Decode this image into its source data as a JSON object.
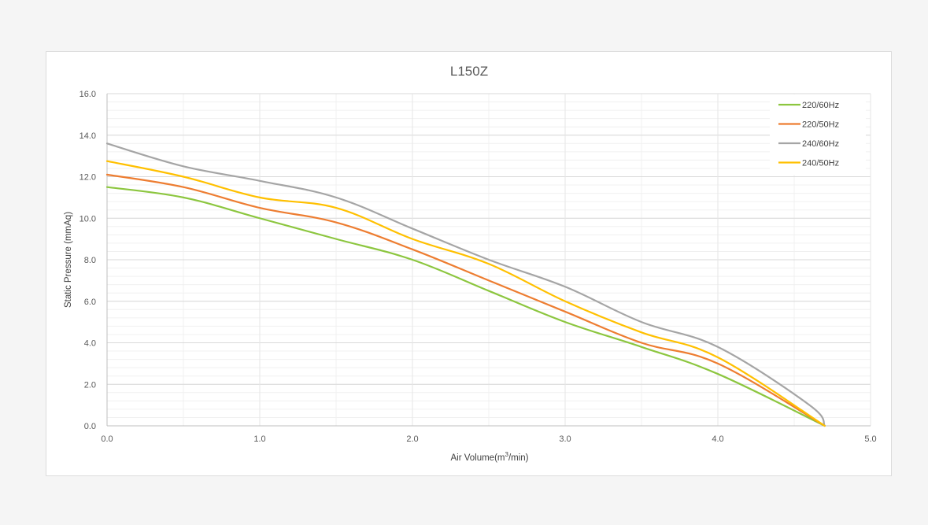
{
  "chart_data": {
    "type": "line",
    "title": "L150Z",
    "xlabel_prefix": "Air Volume(m",
    "xlabel_sup": "3",
    "xlabel_suffix": "/min)",
    "ylabel": "Static Pressure (mmAq)",
    "xlim": [
      0,
      5
    ],
    "ylim": [
      0,
      16
    ],
    "x_ticks": [
      "0.0",
      "1.0",
      "2.0",
      "3.0",
      "4.0",
      "5.0"
    ],
    "y_ticks": [
      "0.0",
      "2.0",
      "4.0",
      "6.0",
      "8.0",
      "10.0",
      "12.0",
      "14.0",
      "16.0"
    ],
    "grid": true,
    "legend_position": "top-right",
    "series": [
      {
        "name": "220/60Hz",
        "color": "#8cc63f",
        "points": [
          [
            0,
            11.5
          ],
          [
            0.5,
            11.0
          ],
          [
            1.0,
            10.0
          ],
          [
            1.5,
            9.0
          ],
          [
            2.0,
            8.0
          ],
          [
            2.5,
            6.5
          ],
          [
            3.0,
            5.0
          ],
          [
            3.5,
            3.8
          ],
          [
            4.0,
            2.5
          ],
          [
            4.7,
            0.0
          ]
        ]
      },
      {
        "name": "220/50Hz",
        "color": "#ed7d31",
        "points": [
          [
            0,
            12.1
          ],
          [
            0.5,
            11.5
          ],
          [
            1.0,
            10.5
          ],
          [
            1.5,
            9.8
          ],
          [
            2.0,
            8.5
          ],
          [
            2.5,
            7.0
          ],
          [
            3.0,
            5.5
          ],
          [
            3.5,
            4.0
          ],
          [
            4.0,
            3.0
          ],
          [
            4.7,
            0.0
          ]
        ]
      },
      {
        "name": "240/60Hz",
        "color": "#a5a5a5",
        "points": [
          [
            0,
            13.6
          ],
          [
            0.5,
            12.5
          ],
          [
            1.0,
            11.8
          ],
          [
            1.5,
            11.0
          ],
          [
            2.0,
            9.5
          ],
          [
            2.5,
            8.0
          ],
          [
            3.0,
            6.7
          ],
          [
            3.5,
            5.0
          ],
          [
            4.0,
            3.8
          ],
          [
            4.6,
            1.0
          ],
          [
            4.7,
            0.0
          ]
        ]
      },
      {
        "name": "240/50Hz",
        "color": "#ffc000",
        "points": [
          [
            0,
            12.75
          ],
          [
            0.5,
            12.0
          ],
          [
            1.0,
            11.0
          ],
          [
            1.5,
            10.5
          ],
          [
            2.0,
            9.0
          ],
          [
            2.5,
            7.8
          ],
          [
            3.0,
            6.0
          ],
          [
            3.5,
            4.5
          ],
          [
            4.0,
            3.3
          ],
          [
            4.7,
            0.0
          ]
        ]
      }
    ],
    "colors": {
      "grid": "#d9d9d9",
      "minor_grid": "#f0f0f0",
      "axis": "#bfbfbf"
    }
  }
}
